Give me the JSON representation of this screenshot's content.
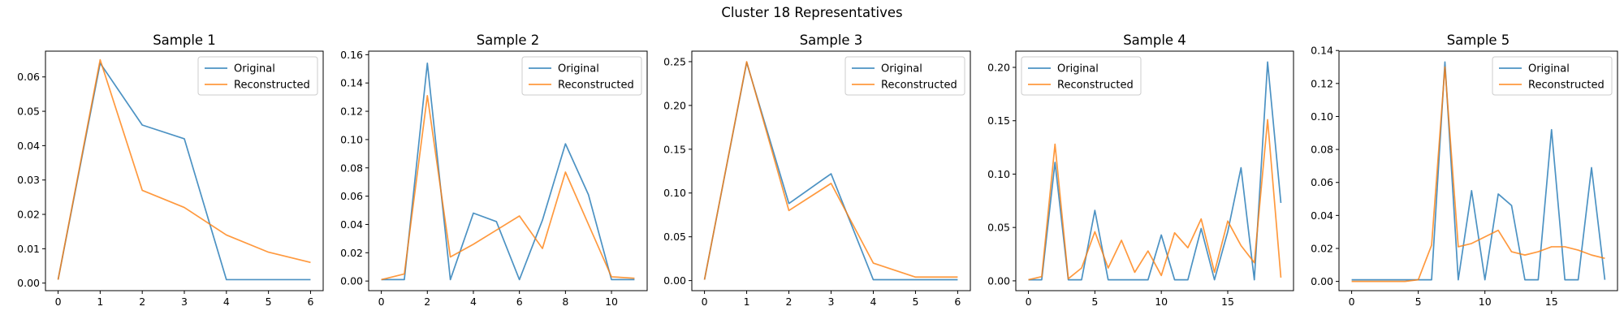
{
  "suptitle": "Cluster 18 Representatives",
  "colors": {
    "original": "#1f77b4",
    "reconstructed": "#ff7f0e"
  },
  "chart_data": [
    {
      "type": "line",
      "title": "Sample 1",
      "xlim": [
        -0.3,
        6.3
      ],
      "ylim": [
        -0.0022,
        0.0675
      ],
      "xticks": [
        0,
        1,
        2,
        3,
        4,
        5,
        6
      ],
      "yticks": [
        0.0,
        0.01,
        0.02,
        0.03,
        0.04,
        0.05,
        0.06
      ],
      "ytick_labels": [
        "0.00",
        "0.01",
        "0.02",
        "0.03",
        "0.04",
        "0.05",
        "0.06"
      ],
      "legend": "top-right",
      "x": [
        0,
        1,
        2,
        3,
        4,
        5,
        6
      ],
      "series": [
        {
          "name": "Original",
          "values": [
            0.001,
            0.064,
            0.046,
            0.042,
            0.001,
            0.001,
            0.001
          ]
        },
        {
          "name": "Reconstructed",
          "values": [
            0.001,
            0.065,
            0.027,
            0.022,
            0.014,
            0.009,
            0.006
          ]
        }
      ]
    },
    {
      "type": "line",
      "title": "Sample 2",
      "xlim": [
        -0.55,
        11.55
      ],
      "ylim": [
        -0.0068,
        0.1625
      ],
      "xticks": [
        0,
        2,
        4,
        6,
        8,
        10
      ],
      "yticks": [
        0.0,
        0.02,
        0.04,
        0.06,
        0.08,
        0.1,
        0.12,
        0.14,
        0.16
      ],
      "ytick_labels": [
        "0.00",
        "0.02",
        "0.04",
        "0.06",
        "0.08",
        "0.10",
        "0.12",
        "0.14",
        "0.16"
      ],
      "legend": "top-right",
      "x": [
        0,
        1,
        2,
        3,
        4,
        5,
        6,
        7,
        8,
        9,
        10,
        11
      ],
      "series": [
        {
          "name": "Original",
          "values": [
            0.001,
            0.001,
            0.154,
            0.001,
            0.048,
            0.042,
            0.001,
            0.043,
            0.097,
            0.061,
            0.001,
            0.001
          ]
        },
        {
          "name": "Reconstructed",
          "values": [
            0.001,
            0.005,
            0.131,
            0.017,
            0.026,
            0.036,
            0.046,
            0.023,
            0.077,
            0.04,
            0.003,
            0.002
          ]
        }
      ]
    },
    {
      "type": "line",
      "title": "Sample 3",
      "xlim": [
        -0.3,
        6.3
      ],
      "ylim": [
        -0.0115,
        0.262
      ],
      "xticks": [
        0,
        1,
        2,
        3,
        4,
        5,
        6
      ],
      "yticks": [
        0.0,
        0.05,
        0.1,
        0.15,
        0.2,
        0.25
      ],
      "ytick_labels": [
        "0.00",
        "0.05",
        "0.10",
        "0.15",
        "0.20",
        "0.25"
      ],
      "legend": "top-right",
      "x": [
        0,
        1,
        2,
        3,
        4,
        5,
        6
      ],
      "series": [
        {
          "name": "Original",
          "values": [
            0.001,
            0.249,
            0.088,
            0.122,
            0.001,
            0.001,
            0.001
          ]
        },
        {
          "name": "Reconstructed",
          "values": [
            0.001,
            0.25,
            0.08,
            0.111,
            0.02,
            0.004,
            0.004
          ]
        }
      ]
    },
    {
      "type": "line",
      "title": "Sample 4",
      "xlim": [
        -0.95,
        19.95
      ],
      "ylim": [
        -0.0092,
        0.2152
      ],
      "xticks": [
        0,
        5,
        10,
        15
      ],
      "yticks": [
        0.0,
        0.05,
        0.1,
        0.15,
        0.2
      ],
      "ytick_labels": [
        "0.00",
        "0.05",
        "0.10",
        "0.15",
        "0.20"
      ],
      "legend": "top-left",
      "x": [
        0,
        1,
        2,
        3,
        4,
        5,
        6,
        7,
        8,
        9,
        10,
        11,
        12,
        13,
        14,
        15,
        16,
        17,
        18,
        19
      ],
      "series": [
        {
          "name": "Original",
          "values": [
            0.001,
            0.001,
            0.111,
            0.001,
            0.001,
            0.066,
            0.001,
            0.001,
            0.001,
            0.001,
            0.043,
            0.001,
            0.001,
            0.049,
            0.001,
            0.046,
            0.106,
            0.001,
            0.205,
            0.073
          ]
        },
        {
          "name": "Reconstructed",
          "values": [
            0.001,
            0.004,
            0.128,
            0.002,
            0.012,
            0.046,
            0.012,
            0.038,
            0.008,
            0.028,
            0.005,
            0.045,
            0.031,
            0.058,
            0.008,
            0.056,
            0.033,
            0.017,
            0.151,
            0.003
          ]
        }
      ]
    },
    {
      "type": "line",
      "title": "Sample 5",
      "xlim": [
        -0.95,
        19.95
      ],
      "ylim": [
        -0.0056,
        0.1396
      ],
      "xticks": [
        0,
        5,
        10,
        15
      ],
      "yticks": [
        0.0,
        0.02,
        0.04,
        0.06,
        0.08,
        0.1,
        0.12,
        0.14
      ],
      "ytick_labels": [
        "0.00",
        "0.02",
        "0.04",
        "0.06",
        "0.08",
        "0.10",
        "0.12",
        "0.14"
      ],
      "legend": "top-right",
      "x": [
        0,
        1,
        2,
        3,
        4,
        5,
        6,
        7,
        8,
        9,
        10,
        11,
        12,
        13,
        14,
        15,
        16,
        17,
        18,
        19
      ],
      "series": [
        {
          "name": "Original",
          "values": [
            0.001,
            0.001,
            0.001,
            0.001,
            0.001,
            0.001,
            0.001,
            0.133,
            0.001,
            0.055,
            0.001,
            0.053,
            0.046,
            0.001,
            0.001,
            0.092,
            0.001,
            0.001,
            0.069,
            0.001
          ]
        },
        {
          "name": "Reconstructed",
          "values": [
            0.0,
            0.0,
            0.0,
            0.0,
            0.0,
            0.001,
            0.022,
            0.13,
            0.021,
            0.023,
            0.027,
            0.031,
            0.018,
            0.016,
            0.018,
            0.021,
            0.021,
            0.019,
            0.016,
            0.014
          ]
        }
      ]
    }
  ]
}
